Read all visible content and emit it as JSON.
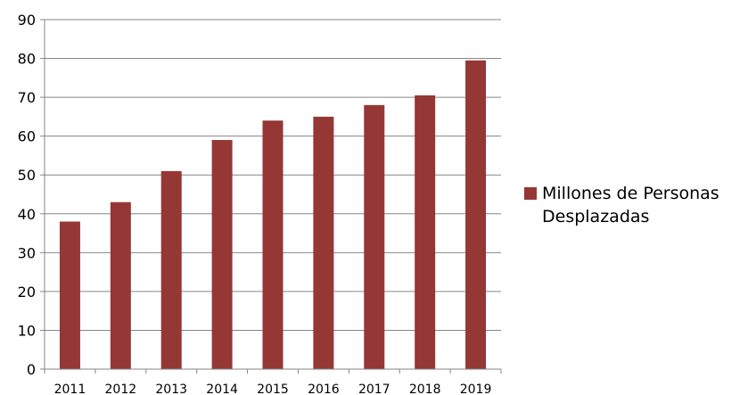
{
  "chart_data": {
    "type": "bar",
    "categories": [
      "2011",
      "2012",
      "2013",
      "2014",
      "2015",
      "2016",
      "2017",
      "2018",
      "2019"
    ],
    "series": [
      {
        "name": "Millones de Personas Desplazadas",
        "values": [
          38,
          43,
          51,
          59,
          64,
          65,
          68,
          70.5,
          79.5
        ]
      }
    ],
    "ylim": [
      0,
      90
    ],
    "yticks": [
      0,
      10,
      20,
      30,
      40,
      50,
      60,
      70,
      80,
      90
    ],
    "grid": true,
    "legend": "right",
    "colors": {
      "bar": "#953735",
      "grid": "#868686",
      "axis": "#868686",
      "text": "#000000"
    }
  }
}
